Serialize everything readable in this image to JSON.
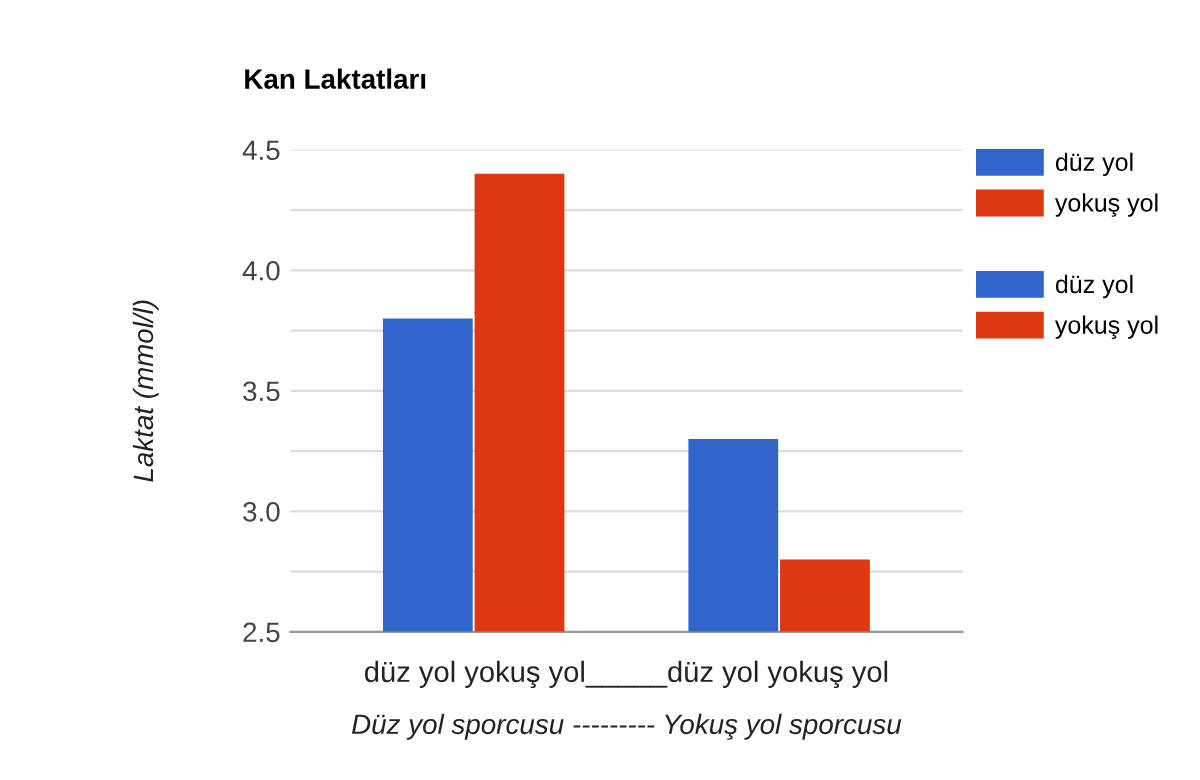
{
  "chart_data": {
    "type": "bar",
    "title": "Kan Laktatları",
    "ylabel": "Laktat (mmol/l)",
    "xlabel": "Düz yol sporcusu --------- Yokuş yol sporcusu",
    "annotations": [
      "düz yol yokuş yol_____düz yol yokuş yol"
    ],
    "categories": [
      null,
      null
    ],
    "series": [
      {
        "name": "düz yol",
        "color": "#3366cc",
        "values": [
          3.8,
          null
        ]
      },
      {
        "name": "yokuş yol",
        "color": "#dc3912",
        "values": [
          4.4,
          null
        ]
      },
      {
        "name": "düz yol",
        "color": "#3366cc",
        "values": [
          null,
          3.3
        ]
      },
      {
        "name": "yokuş yol",
        "color": "#dc3912",
        "values": [
          null,
          2.8
        ]
      }
    ],
    "ylim": [
      2.5,
      4.5
    ],
    "yticks": [
      {
        "value": 2.5,
        "label": "2.5"
      },
      {
        "value": 2.75,
        "label": null
      },
      {
        "value": 3.0,
        "label": "3.0"
      },
      {
        "value": 3.25,
        "label": null
      },
      {
        "value": 3.5,
        "label": "3.5"
      },
      {
        "value": 3.75,
        "label": null
      },
      {
        "value": 4.0,
        "label": "4.0"
      },
      {
        "value": 4.25,
        "label": null
      },
      {
        "value": 4.5,
        "label": "4.5"
      }
    ],
    "grid": "y",
    "legend": "top right"
  }
}
